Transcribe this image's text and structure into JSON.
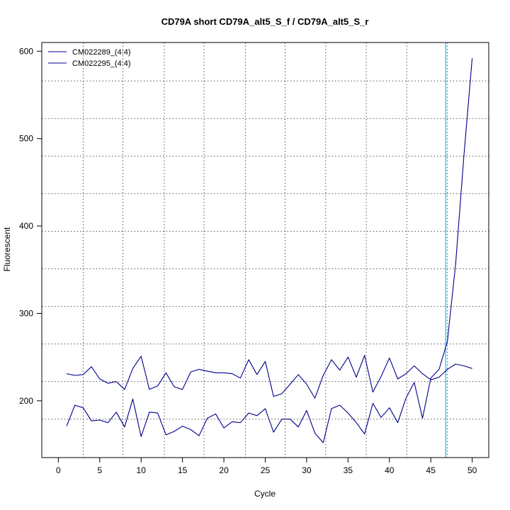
{
  "chart_data": {
    "type": "line",
    "title": "CD79A short CD79A_alt5_S_f / CD79A_alt5_S_r",
    "xlabel": "Cycle",
    "ylabel": "Fluorescent",
    "xlim": [
      -2,
      52
    ],
    "ylim": [
      135,
      610
    ],
    "xticks": [
      0,
      5,
      10,
      15,
      20,
      25,
      30,
      35,
      40,
      45,
      50
    ],
    "yticks": [
      200,
      300,
      400,
      500,
      600
    ],
    "x_grid": [
      3,
      7.8,
      12.8,
      17.6,
      22.6,
      27.4,
      32.3,
      37.2,
      42.1,
      47
    ],
    "y_grid": [
      179,
      222,
      265,
      308,
      351,
      394,
      437,
      480,
      523,
      566
    ],
    "threshold_x": 46.8,
    "threshold_color": "#00bfff",
    "legend_position": "top-left",
    "series": [
      {
        "name": "CM022289_(4:4)",
        "color": "#00008b",
        "x": [
          1,
          2,
          3,
          4,
          5,
          6,
          7,
          8,
          9,
          10,
          11,
          12,
          13,
          14,
          15,
          16,
          17,
          18,
          19,
          20,
          21,
          22,
          23,
          24,
          25,
          26,
          27,
          28,
          29,
          30,
          31,
          32,
          33,
          34,
          35,
          36,
          37,
          38,
          39,
          40,
          41,
          42,
          43,
          44,
          45,
          46,
          47,
          48,
          49,
          50
        ],
        "values": [
          171,
          195,
          192,
          177,
          178,
          175,
          187,
          170,
          202,
          159,
          187,
          186,
          161,
          165,
          171,
          167,
          160,
          180,
          185,
          169,
          176,
          175,
          186,
          183,
          191,
          164,
          179,
          179,
          170,
          189,
          163,
          152,
          191,
          195,
          186,
          175,
          162,
          197,
          181,
          192,
          175,
          203,
          221,
          180,
          226,
          236,
          268,
          357,
          480,
          592
        ]
      },
      {
        "name": "CM022295_(4:4)",
        "color": "#00008b",
        "x": [
          1,
          2,
          3,
          4,
          5,
          6,
          7,
          8,
          9,
          10,
          11,
          12,
          13,
          14,
          15,
          16,
          17,
          18,
          19,
          20,
          21,
          22,
          23,
          24,
          25,
          26,
          27,
          28,
          29,
          30,
          31,
          32,
          33,
          34,
          35,
          36,
          37,
          38,
          39,
          40,
          41,
          42,
          43,
          44,
          45,
          46,
          47,
          48,
          49,
          50
        ],
        "values": [
          231,
          229,
          230,
          239,
          225,
          220,
          222,
          213,
          237,
          251,
          213,
          217,
          232,
          216,
          213,
          233,
          236,
          234,
          232,
          232,
          231,
          226,
          247,
          230,
          245,
          205,
          208,
          219,
          230,
          219,
          203,
          229,
          247,
          235,
          250,
          227,
          252,
          210,
          228,
          249,
          225,
          231,
          240,
          231,
          224,
          227,
          236,
          242,
          240,
          237
        ]
      }
    ]
  }
}
